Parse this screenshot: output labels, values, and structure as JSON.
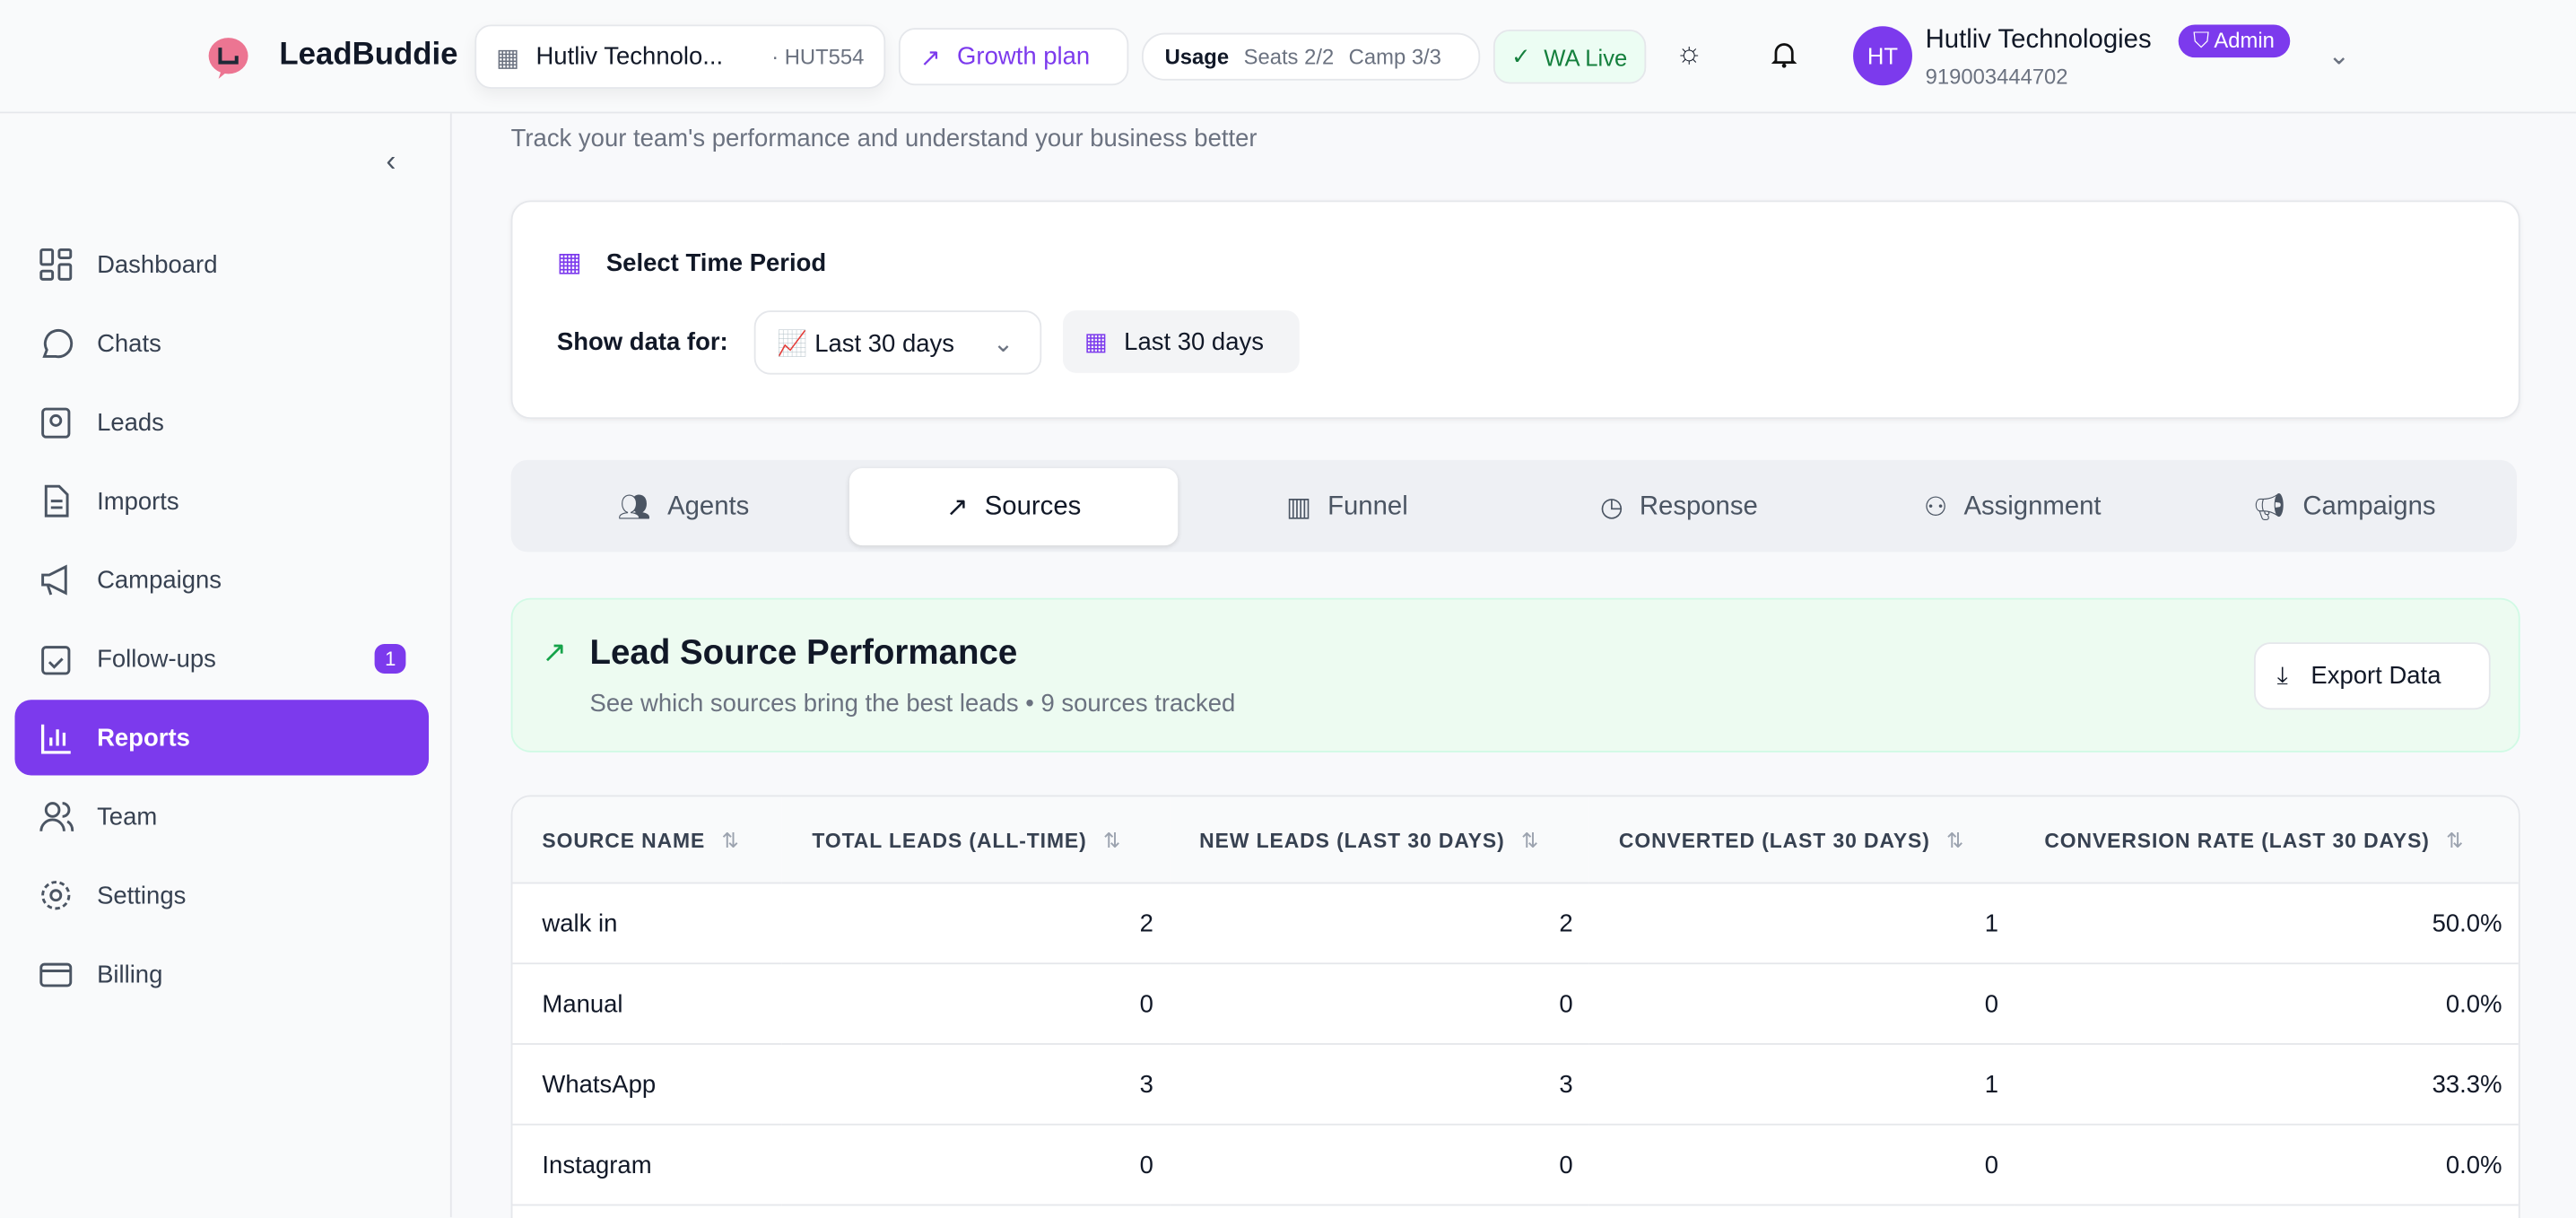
{
  "header": {
    "brand": "LeadBuddie",
    "org_name": "Hutliv Technolo...",
    "org_code": "· HUT554",
    "plan": "Growth plan",
    "usage_label": "Usage",
    "seats": "Seats 2/2",
    "camp": "Camp 3/3",
    "wa_status": "WA Live",
    "user_initials": "HT",
    "user_name": "Hutliv Technologies",
    "role": "Admin",
    "phone": "919003444702"
  },
  "sidebar": {
    "items": [
      {
        "label": "Dashboard"
      },
      {
        "label": "Chats"
      },
      {
        "label": "Leads"
      },
      {
        "label": "Imports"
      },
      {
        "label": "Campaigns"
      },
      {
        "label": "Follow-ups",
        "badge": "1"
      },
      {
        "label": "Reports"
      },
      {
        "label": "Team"
      },
      {
        "label": "Settings"
      },
      {
        "label": "Billing"
      }
    ]
  },
  "page": {
    "subtitle": "Track your team's performance and understand your business better"
  },
  "time_period": {
    "title": "Select Time Period",
    "show_label": "Show data for:",
    "select_value": "📈 Last 30 days",
    "chip": "Last 30 days"
  },
  "tabs": [
    {
      "label": "Agents"
    },
    {
      "label": "Sources"
    },
    {
      "label": "Funnel"
    },
    {
      "label": "Response"
    },
    {
      "label": "Assignment"
    },
    {
      "label": "Campaigns"
    }
  ],
  "section": {
    "title": "Lead Source Performance",
    "subtitle": "See which sources bring the best leads • 9 sources tracked",
    "export": "Export Data"
  },
  "table": {
    "columns": [
      "SOURCE NAME",
      "TOTAL LEADS (ALL-TIME)",
      "NEW LEADS (LAST 30 DAYS)",
      "CONVERTED (LAST 30 DAYS)",
      "CONVERSION RATE (LAST 30 DAYS)"
    ],
    "rows": [
      [
        "walk in",
        "2",
        "2",
        "1",
        "50.0%"
      ],
      [
        "Manual",
        "0",
        "0",
        "0",
        "0.0%"
      ],
      [
        "WhatsApp",
        "3",
        "3",
        "1",
        "33.3%"
      ],
      [
        "Instagram",
        "0",
        "0",
        "0",
        "0.0%"
      ]
    ]
  },
  "colors": {
    "accent": "#7c3aed",
    "green": "#15803d"
  }
}
